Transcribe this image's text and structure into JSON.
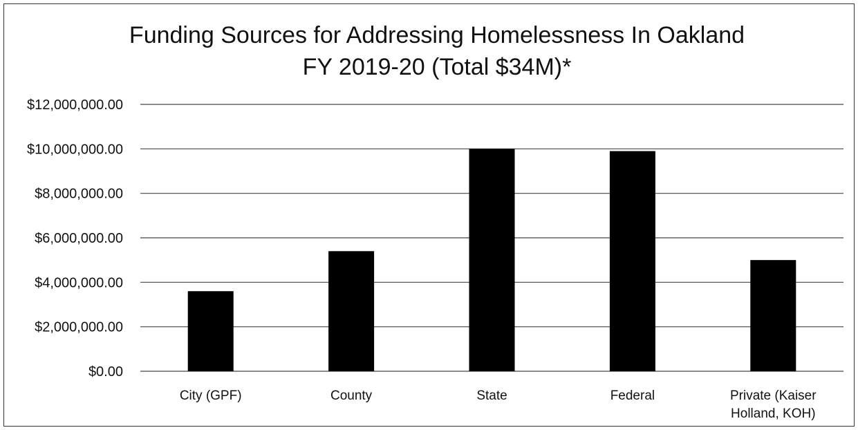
{
  "chart_data": {
    "type": "bar",
    "title": [
      "Funding Sources for Addressing Homelessness In Oakland",
      "FY 2019-20  (Total $34M)*"
    ],
    "categories": [
      [
        "City (GPF)"
      ],
      [
        "County"
      ],
      [
        "State"
      ],
      [
        "Federal"
      ],
      [
        "Private (Kaiser",
        "Holland, KOH)"
      ]
    ],
    "values": [
      3600000,
      5400000,
      10000000,
      9900000,
      5000000
    ],
    "ylim": [
      0,
      12000000
    ],
    "yticks": [
      0,
      2000000,
      4000000,
      6000000,
      8000000,
      10000000,
      12000000
    ],
    "ytick_labels": [
      "$0.00",
      "$2,000,000.00",
      "$4,000,000.00",
      "$6,000,000.00",
      "$8,000,000.00",
      "$10,000,000.00",
      "$12,000,000.00"
    ],
    "bar_color": "#000000",
    "grid": true,
    "legend": false
  }
}
